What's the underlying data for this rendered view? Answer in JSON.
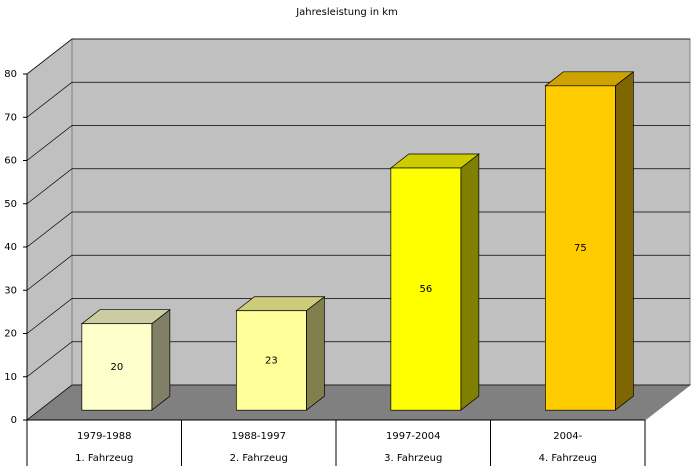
{
  "chart_data": {
    "type": "bar3d",
    "title": "Jahresleistung in km",
    "categories": [
      "1979-1988",
      "1988-1997",
      "1997-2004",
      "2004-"
    ],
    "category_groups": [
      "1. Fahrzeug",
      "2. Fahrzeug",
      "3. Fahrzeug",
      "4. Fahrzeug"
    ],
    "values": [
      20,
      23,
      56,
      75
    ],
    "colors": [
      "#ffffcc",
      "#ffff99",
      "#ffff00",
      "#ffcc00"
    ],
    "ylim": [
      0,
      80
    ],
    "yticks": [
      0,
      10,
      20,
      30,
      40,
      50,
      60,
      70,
      80
    ],
    "grid": true
  }
}
